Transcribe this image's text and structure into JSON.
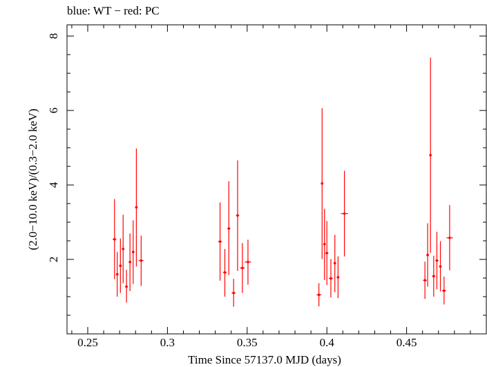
{
  "header_text": "blue: WT − red: PC",
  "chart_data": {
    "type": "scatter",
    "title": "",
    "xlabel": "Time Since 57137.0 MJD (days)",
    "ylabel": "(2.0−10.0 keV)/(0.3−2.0 keV)",
    "xlim": [
      0.237,
      0.5
    ],
    "ylim": [
      0.0,
      8.3
    ],
    "x_ticks": [
      0.25,
      0.3,
      0.35,
      0.4,
      0.45
    ],
    "x_tick_labels": [
      "0.25",
      "0.3",
      "0.35",
      "0.4",
      "0.45"
    ],
    "y_ticks": [
      2,
      4,
      6,
      8
    ],
    "y_tick_labels": [
      "2",
      "4",
      "6",
      "8"
    ],
    "grid": false,
    "series": [
      {
        "name": "PC",
        "color": "#ff0000",
        "points": [
          {
            "x": 0.2668,
            "y": 2.54,
            "xerr": 0.0012,
            "ylo": 1.47,
            "yhi": 3.62
          },
          {
            "x": 0.2685,
            "y": 1.6,
            "xerr": 0.0008,
            "ylo": 1.0,
            "yhi": 2.2
          },
          {
            "x": 0.2705,
            "y": 1.83,
            "xerr": 0.0008,
            "ylo": 1.1,
            "yhi": 2.56
          },
          {
            "x": 0.2722,
            "y": 2.28,
            "xerr": 0.0008,
            "ylo": 1.36,
            "yhi": 3.2
          },
          {
            "x": 0.2743,
            "y": 1.27,
            "xerr": 0.0008,
            "ylo": 0.84,
            "yhi": 1.72
          },
          {
            "x": 0.2765,
            "y": 1.93,
            "xerr": 0.0008,
            "ylo": 1.15,
            "yhi": 2.7
          },
          {
            "x": 0.2785,
            "y": 2.2,
            "xerr": 0.0008,
            "ylo": 1.34,
            "yhi": 3.05
          },
          {
            "x": 0.2805,
            "y": 3.4,
            "xerr": 0.0008,
            "ylo": 1.81,
            "yhi": 4.98
          },
          {
            "x": 0.2835,
            "y": 1.97,
            "xerr": 0.0015,
            "ylo": 1.29,
            "yhi": 2.64
          },
          {
            "x": 0.333,
            "y": 2.48,
            "xerr": 0.0012,
            "ylo": 1.43,
            "yhi": 3.53
          },
          {
            "x": 0.336,
            "y": 1.65,
            "xerr": 0.0012,
            "ylo": 1.0,
            "yhi": 2.28
          },
          {
            "x": 0.3385,
            "y": 2.83,
            "xerr": 0.001,
            "ylo": 1.58,
            "yhi": 4.1
          },
          {
            "x": 0.3415,
            "y": 1.1,
            "xerr": 0.0012,
            "ylo": 0.73,
            "yhi": 1.48
          },
          {
            "x": 0.344,
            "y": 3.18,
            "xerr": 0.001,
            "ylo": 1.69,
            "yhi": 4.66
          },
          {
            "x": 0.347,
            "y": 1.77,
            "xerr": 0.0015,
            "ylo": 1.1,
            "yhi": 2.44
          },
          {
            "x": 0.3505,
            "y": 1.93,
            "xerr": 0.002,
            "ylo": 1.32,
            "yhi": 2.53
          },
          {
            "x": 0.395,
            "y": 1.05,
            "xerr": 0.0015,
            "ylo": 0.74,
            "yhi": 1.36
          },
          {
            "x": 0.397,
            "y": 4.04,
            "xerr": 0.0008,
            "ylo": 2.01,
            "yhi": 6.06
          },
          {
            "x": 0.3985,
            "y": 2.41,
            "xerr": 0.0008,
            "ylo": 1.45,
            "yhi": 3.36
          },
          {
            "x": 0.4,
            "y": 2.17,
            "xerr": 0.001,
            "ylo": 1.31,
            "yhi": 3.03
          },
          {
            "x": 0.4025,
            "y": 1.49,
            "xerr": 0.0012,
            "ylo": 0.98,
            "yhi": 2.01
          },
          {
            "x": 0.405,
            "y": 1.9,
            "xerr": 0.0008,
            "ylo": 1.12,
            "yhi": 2.66
          },
          {
            "x": 0.407,
            "y": 1.52,
            "xerr": 0.0008,
            "ylo": 0.96,
            "yhi": 2.08
          },
          {
            "x": 0.411,
            "y": 3.23,
            "xerr": 0.0022,
            "ylo": 2.08,
            "yhi": 4.38
          },
          {
            "x": 0.4615,
            "y": 1.44,
            "xerr": 0.0012,
            "ylo": 0.94,
            "yhi": 1.94
          },
          {
            "x": 0.4632,
            "y": 2.12,
            "xerr": 0.0008,
            "ylo": 1.27,
            "yhi": 2.97
          },
          {
            "x": 0.465,
            "y": 4.8,
            "xerr": 0.0008,
            "ylo": 2.18,
            "yhi": 7.42
          },
          {
            "x": 0.467,
            "y": 1.55,
            "xerr": 0.001,
            "ylo": 1.0,
            "yhi": 2.1
          },
          {
            "x": 0.469,
            "y": 1.97,
            "xerr": 0.001,
            "ylo": 1.2,
            "yhi": 2.74
          },
          {
            "x": 0.4712,
            "y": 1.81,
            "xerr": 0.0008,
            "ylo": 1.14,
            "yhi": 2.49
          },
          {
            "x": 0.4735,
            "y": 1.16,
            "xerr": 0.0012,
            "ylo": 0.79,
            "yhi": 1.54
          },
          {
            "x": 0.477,
            "y": 2.58,
            "xerr": 0.002,
            "ylo": 1.71,
            "yhi": 3.46
          }
        ]
      }
    ]
  }
}
